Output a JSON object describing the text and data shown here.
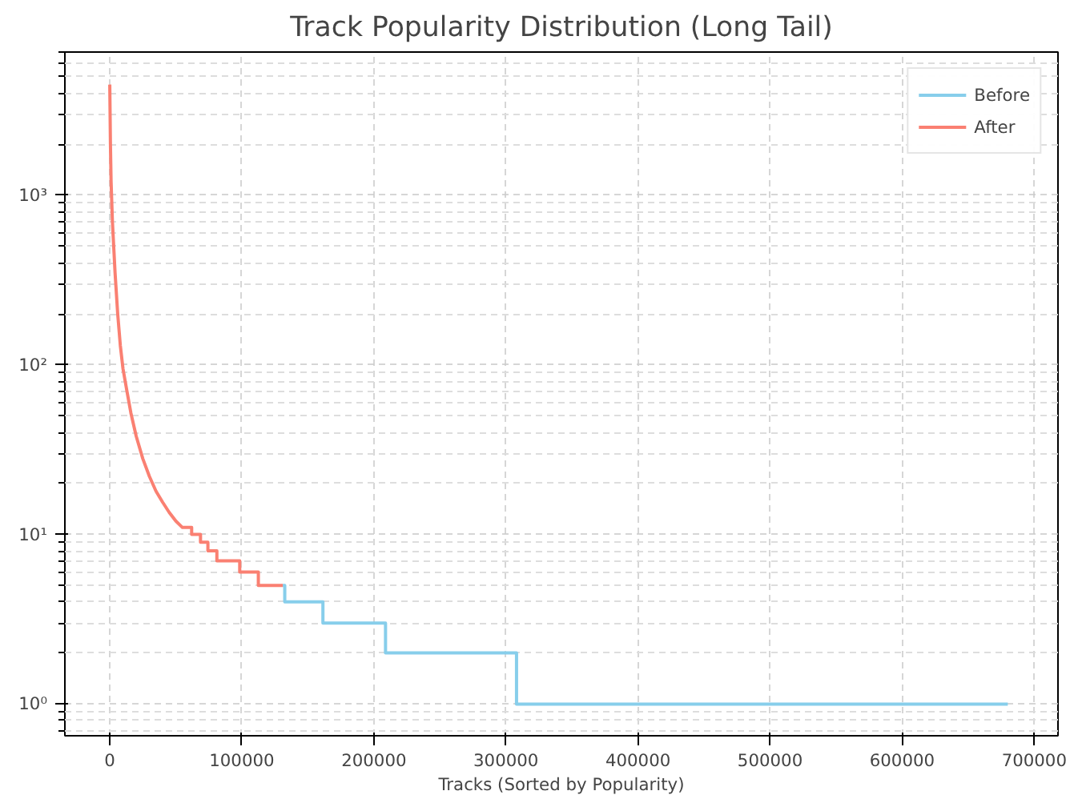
{
  "chart_data": {
    "type": "line",
    "title": "Track Popularity Distribution (Long Tail)",
    "xlabel": "Tracks (Sorted by Popularity)",
    "log": "y",
    "grid": true,
    "legend": "top right",
    "line_style": "solid",
    "xlim": [
      -34000,
      718000
    ],
    "xticks": [
      0,
      100000,
      200000,
      300000,
      400000,
      500000,
      600000,
      700000
    ],
    "ylim": [
      0.65,
      7000
    ],
    "yticks": [
      {
        "value": 1,
        "label": "10⁰"
      },
      {
        "value": 10,
        "label": "10¹"
      },
      {
        "value": 100,
        "label": "10²"
      },
      {
        "value": 1000,
        "label": "10³"
      }
    ],
    "series": [
      {
        "name": "Before",
        "color": "#87ceeb",
        "x": [
          131000,
          132500,
          132500,
          161400,
          161400,
          208800,
          208800,
          308000,
          308000,
          680000
        ],
        "values": [
          5,
          5,
          4,
          4,
          3,
          3,
          2,
          2,
          1,
          1
        ]
      },
      {
        "name": "After",
        "color": "#fa8072",
        "x": [
          0,
          500,
          1000,
          2000,
          4000,
          6000,
          8000,
          10000,
          13000,
          16000,
          20000,
          25000,
          30000,
          35000,
          40000,
          45000,
          50000,
          55000,
          62000,
          62000,
          68700,
          68700,
          74300,
          74300,
          81100,
          81100,
          88300,
          88300,
          98400,
          98400,
          112500,
          112500,
          131000
        ],
        "values": [
          4500,
          2000,
          1200,
          700,
          350,
          200,
          130,
          95,
          70,
          52,
          38,
          28,
          22,
          18,
          15.5,
          13.5,
          12,
          11,
          11,
          10,
          10,
          9,
          9,
          8,
          8,
          7,
          7,
          7,
          7,
          6,
          6,
          5,
          5
        ]
      }
    ]
  }
}
